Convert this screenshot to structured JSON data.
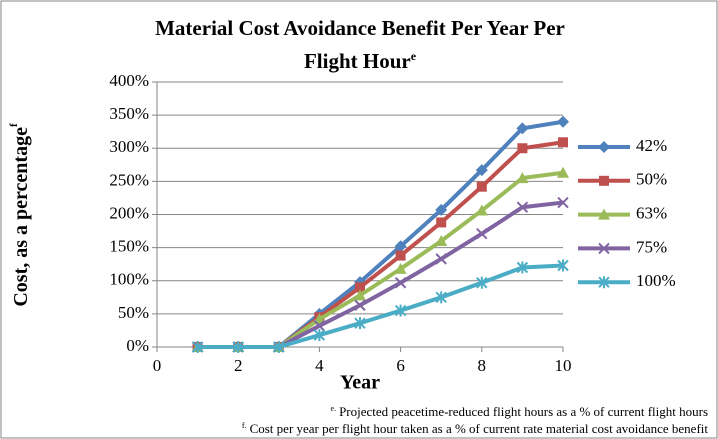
{
  "chart_data": {
    "type": "line",
    "title": "Material Cost Avoidance Benefit Per Year Per Flight Hour",
    "title_superscript": "e",
    "y_label": "Cost, as a percentage",
    "y_label_superscript": "f",
    "x_label": "Year",
    "x": [
      1,
      2,
      3,
      4,
      5,
      6,
      7,
      8,
      9,
      10
    ],
    "series": [
      {
        "name": "42%",
        "color": "#4f81bd",
        "marker": "diamond",
        "values": [
          0,
          0,
          0,
          50,
          98,
          152,
          207,
          267,
          330,
          340
        ]
      },
      {
        "name": "50%",
        "color": "#c0504d",
        "marker": "square",
        "values": [
          0,
          0,
          0,
          45,
          90,
          138,
          188,
          242,
          300,
          309
        ]
      },
      {
        "name": "63%",
        "color": "#9bbb59",
        "marker": "triangle",
        "values": [
          0,
          0,
          0,
          42,
          78,
          118,
          160,
          206,
          255,
          263
        ]
      },
      {
        "name": "75%",
        "color": "#8064a2",
        "marker": "x",
        "values": [
          0,
          0,
          0,
          32,
          63,
          97,
          133,
          171,
          211,
          218
        ]
      },
      {
        "name": "100%",
        "color": "#4bacc6",
        "marker": "star",
        "values": [
          0,
          0,
          0,
          18,
          36,
          55,
          75,
          97,
          120,
          123
        ]
      }
    ],
    "xlim": [
      0,
      10
    ],
    "xticks": [
      0,
      2,
      4,
      6,
      8,
      10
    ],
    "ylim": [
      0,
      400
    ],
    "yticks": [
      {
        "value": 0,
        "label": "0%"
      },
      {
        "value": 50,
        "label": "50%"
      },
      {
        "value": 100,
        "label": "100%"
      },
      {
        "value": 150,
        "label": "150%"
      },
      {
        "value": 200,
        "label": "200%"
      },
      {
        "value": 250,
        "label": "250%"
      },
      {
        "value": 300,
        "label": "300%"
      },
      {
        "value": 350,
        "label": "350%"
      },
      {
        "value": 400,
        "label": "400%"
      }
    ],
    "grid": true,
    "legend": "right",
    "footnotes": [
      {
        "mark": "e.",
        "text": "Projected peacetime-reduced flight hours as a % of current flight hours"
      },
      {
        "mark": "f.",
        "text": "Cost per year per flight hour taken as a % of current rate material cost avoidance benefit"
      }
    ]
  }
}
